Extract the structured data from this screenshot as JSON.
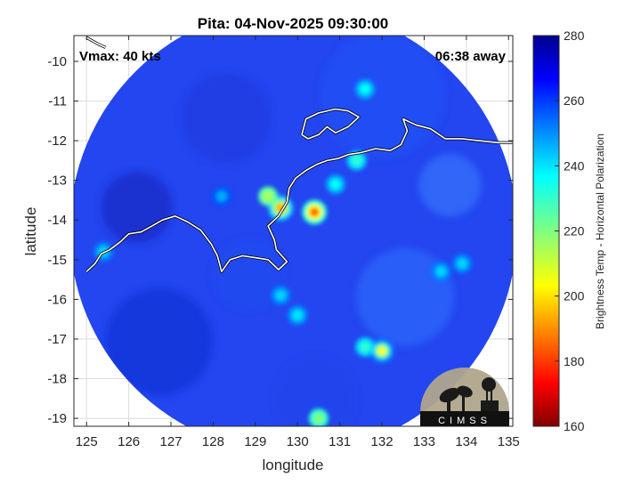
{
  "chart_data": {
    "type": "heatmap",
    "title": "Pita: 04-Nov-2025 09:30:00",
    "xlabel": "longitude",
    "ylabel": "latitude",
    "xlim": [
      124.7,
      135.1
    ],
    "ylim": [
      -19.2,
      -9.35
    ],
    "x_ticks": [
      125,
      126,
      127,
      128,
      129,
      130,
      131,
      132,
      133,
      134,
      135
    ],
    "y_ticks": [
      -10,
      -11,
      -12,
      -13,
      -14,
      -15,
      -16,
      -17,
      -18,
      -19
    ],
    "grid": true,
    "annotations": {
      "left": "Vmax: 40 kts",
      "right": "06:38 away"
    },
    "colorbar": {
      "label": "Brightness Temp - Horizontal Polarization",
      "min": 160,
      "max": 280,
      "ticks": [
        160,
        180,
        200,
        220,
        240,
        260,
        280
      ],
      "colormap": "jet"
    },
    "swath": {
      "center": [
        129.9,
        -14.25
      ],
      "radius_deg": 5.3
    },
    "features": [
      {
        "lon": 130.4,
        "lat": -13.8,
        "value": 185
      },
      {
        "lon": 129.6,
        "lat": -13.7,
        "value": 195
      },
      {
        "lon": 129.3,
        "lat": -13.4,
        "value": 215
      },
      {
        "lon": 131.4,
        "lat": -12.5,
        "value": 230
      },
      {
        "lon": 130.9,
        "lat": -13.1,
        "value": 235
      },
      {
        "lon": 132.0,
        "lat": -17.3,
        "value": 205
      },
      {
        "lon": 131.6,
        "lat": -17.2,
        "value": 230
      },
      {
        "lon": 130.0,
        "lat": -16.4,
        "value": 238
      },
      {
        "lon": 129.6,
        "lat": -15.9,
        "value": 240
      },
      {
        "lon": 130.5,
        "lat": -19.0,
        "value": 220
      },
      {
        "lon": 131.6,
        "lat": -10.7,
        "value": 235
      },
      {
        "lon": 133.4,
        "lat": -15.3,
        "value": 240
      },
      {
        "lon": 133.9,
        "lat": -15.1,
        "value": 240
      },
      {
        "lon": 125.4,
        "lat": -14.8,
        "value": 240
      },
      {
        "lon": 128.2,
        "lat": -13.4,
        "value": 245
      }
    ],
    "coastline": [
      [
        125.0,
        -15.3
      ],
      [
        125.2,
        -15.1
      ],
      [
        125.35,
        -14.85
      ],
      [
        125.55,
        -14.75
      ],
      [
        125.8,
        -14.55
      ],
      [
        126.0,
        -14.35
      ],
      [
        126.3,
        -14.3
      ],
      [
        126.55,
        -14.15
      ],
      [
        126.8,
        -14.0
      ],
      [
        127.1,
        -13.9
      ],
      [
        127.4,
        -14.05
      ],
      [
        127.7,
        -14.25
      ],
      [
        127.95,
        -14.6
      ],
      [
        128.1,
        -14.9
      ],
      [
        128.2,
        -15.3
      ],
      [
        128.4,
        -15.0
      ],
      [
        128.7,
        -14.9
      ],
      [
        129.0,
        -14.95
      ],
      [
        129.3,
        -15.0
      ],
      [
        129.55,
        -15.25
      ],
      [
        129.75,
        -15.05
      ],
      [
        129.5,
        -14.75
      ],
      [
        129.45,
        -14.5
      ],
      [
        129.3,
        -14.15
      ],
      [
        129.55,
        -13.9
      ],
      [
        129.75,
        -13.55
      ],
      [
        129.8,
        -13.2
      ],
      [
        129.95,
        -12.95
      ],
      [
        130.2,
        -12.75
      ],
      [
        130.45,
        -12.6
      ],
      [
        130.7,
        -12.5
      ],
      [
        130.95,
        -12.45
      ],
      [
        131.2,
        -12.35
      ],
      [
        131.5,
        -12.3
      ],
      [
        131.85,
        -12.2
      ],
      [
        132.2,
        -12.25
      ],
      [
        132.45,
        -12.1
      ],
      [
        132.6,
        -11.75
      ],
      [
        132.5,
        -11.45
      ],
      [
        132.8,
        -11.6
      ],
      [
        133.15,
        -11.7
      ],
      [
        133.5,
        -11.95
      ],
      [
        133.9,
        -11.95
      ],
      [
        134.3,
        -12.0
      ],
      [
        134.75,
        -12.05
      ],
      [
        135.1,
        -12.05
      ]
    ],
    "islands": [
      [
        [
          130.1,
          -11.85
        ],
        [
          130.2,
          -11.45
        ],
        [
          130.5,
          -11.3
        ],
        [
          130.9,
          -11.2
        ],
        [
          131.2,
          -11.25
        ],
        [
          131.45,
          -11.4
        ],
        [
          131.2,
          -11.65
        ],
        [
          130.9,
          -11.8
        ],
        [
          130.7,
          -11.65
        ],
        [
          130.5,
          -11.85
        ],
        [
          130.25,
          -11.95
        ],
        [
          130.1,
          -11.85
        ]
      ],
      [
        [
          125.0,
          -9.4
        ],
        [
          125.25,
          -9.55
        ],
        [
          125.45,
          -9.65
        ]
      ]
    ]
  },
  "logo": {
    "text": "CIMSS"
  }
}
